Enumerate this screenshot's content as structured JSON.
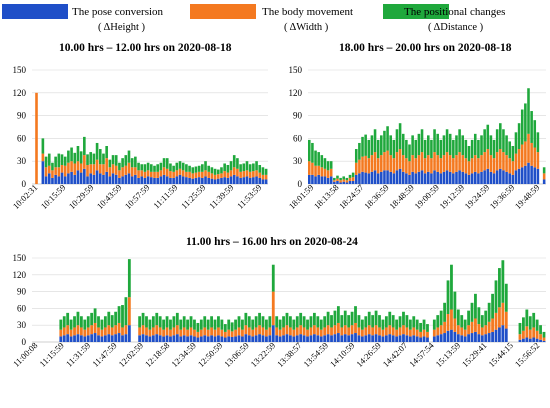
{
  "chart_data": [
    {
      "type": "bar",
      "stacked": true,
      "title": "10.00 hrs – 12.00 hrs on 2020-08-18",
      "ylim": [
        0,
        150
      ],
      "yticks": [
        0,
        30,
        60,
        90,
        120,
        150
      ],
      "grid": true,
      "x_tick_labels": [
        "10:02:31",
        "10:15:59",
        "10:29:59",
        "10:43:59",
        "10:57:59",
        "11:11:59",
        "11:25:59",
        "11:39:59",
        "11:53:59"
      ],
      "series": [
        {
          "key": "pose",
          "values": [
            0,
            0,
            0,
            30,
            10,
            14,
            8,
            12,
            10,
            15,
            10,
            14,
            16,
            12,
            18,
            15,
            20,
            10,
            14,
            12,
            18,
            14,
            12,
            16,
            10,
            14,
            12,
            8,
            10,
            12,
            14,
            10,
            12,
            8,
            10,
            8,
            10,
            9,
            8,
            8,
            10,
            12,
            10,
            8,
            8,
            10,
            12,
            10,
            9,
            8,
            7,
            8,
            9,
            8,
            10,
            8,
            7,
            6,
            7,
            8,
            9,
            8,
            10,
            12,
            10,
            8,
            9,
            10,
            8,
            9,
            10,
            8,
            6,
            6
          ]
        },
        {
          "key": "body",
          "values": [
            0,
            120,
            0,
            10,
            12,
            10,
            10,
            10,
            12,
            10,
            14,
            14,
            14,
            15,
            12,
            12,
            18,
            15,
            12,
            14,
            14,
            12,
            14,
            18,
            12,
            12,
            12,
            10,
            12,
            12,
            14,
            12,
            10,
            10,
            8,
            8,
            8,
            7,
            8,
            8,
            8,
            10,
            10,
            9,
            8,
            8,
            8,
            8,
            7,
            8,
            7,
            7,
            7,
            8,
            8,
            8,
            7,
            6,
            6,
            6,
            8,
            7,
            8,
            10,
            10,
            8,
            8,
            8,
            8,
            8,
            8,
            7,
            6,
            6
          ]
        },
        {
          "key": "positional",
          "values": [
            0,
            0,
            0,
            20,
            14,
            16,
            10,
            14,
            18,
            14,
            12,
            16,
            18,
            14,
            20,
            16,
            24,
            14,
            16,
            14,
            22,
            20,
            14,
            16,
            10,
            12,
            14,
            10,
            12,
            14,
            16,
            12,
            14,
            10,
            8,
            10,
            10,
            10,
            8,
            10,
            10,
            12,
            14,
            10,
            8,
            10,
            10,
            10,
            10,
            8,
            8,
            8,
            8,
            10,
            12,
            8,
            8,
            8,
            6,
            8,
            10,
            10,
            12,
            16,
            14,
            10,
            10,
            12,
            10,
            10,
            12,
            10,
            10,
            8
          ]
        }
      ]
    },
    {
      "type": "bar",
      "stacked": true,
      "title": "18.00 hrs – 20.00 hrs on 2020-08-18",
      "ylim": [
        0,
        150
      ],
      "yticks": [
        0,
        30,
        60,
        90,
        120,
        150
      ],
      "grid": true,
      "x_tick_labels": [
        "18:01:59",
        "18:13:58",
        "18:24:57",
        "18:36:59",
        "18:48:59",
        "19:00:59",
        "19:12:59",
        "19:24:59",
        "19:36:59",
        "19:48:59"
      ],
      "series": [
        {
          "key": "pose",
          "values": [
            12,
            12,
            10,
            12,
            10,
            10,
            8,
            10,
            3,
            4,
            2,
            3,
            2,
            4,
            4,
            12,
            14,
            16,
            15,
            14,
            16,
            18,
            14,
            16,
            18,
            18,
            16,
            14,
            18,
            20,
            16,
            14,
            12,
            16,
            14,
            16,
            18,
            14,
            16,
            14,
            18,
            16,
            14,
            16,
            18,
            16,
            14,
            16,
            18,
            16,
            14,
            12,
            14,
            16,
            14,
            16,
            18,
            20,
            16,
            14,
            18,
            20,
            18,
            16,
            14,
            12,
            18,
            20,
            22,
            24,
            28,
            24,
            22,
            20,
            0,
            6
          ]
        },
        {
          "key": "body",
          "values": [
            18,
            16,
            14,
            12,
            12,
            10,
            10,
            10,
            2,
            3,
            3,
            3,
            3,
            4,
            5,
            16,
            18,
            20,
            22,
            20,
            22,
            24,
            20,
            22,
            24,
            26,
            22,
            20,
            24,
            26,
            22,
            20,
            18,
            22,
            20,
            22,
            24,
            20,
            22,
            20,
            24,
            22,
            20,
            22,
            24,
            22,
            20,
            22,
            24,
            22,
            20,
            18,
            20,
            22,
            20,
            22,
            24,
            26,
            22,
            20,
            24,
            26,
            24,
            22,
            20,
            18,
            22,
            26,
            30,
            32,
            38,
            30,
            26,
            22,
            0,
            8
          ]
        },
        {
          "key": "positional",
          "values": [
            28,
            26,
            20,
            18,
            16,
            14,
            12,
            10,
            3,
            4,
            3,
            4,
            3,
            4,
            6,
            18,
            22,
            26,
            28,
            24,
            26,
            30,
            24,
            26,
            28,
            32,
            26,
            24,
            30,
            34,
            28,
            24,
            22,
            26,
            24,
            28,
            30,
            24,
            26,
            24,
            30,
            28,
            24,
            26,
            30,
            28,
            24,
            26,
            30,
            26,
            24,
            20,
            24,
            28,
            24,
            26,
            30,
            32,
            26,
            24,
            30,
            34,
            30,
            26,
            22,
            20,
            28,
            34,
            46,
            50,
            60,
            42,
            36,
            26,
            0,
            8
          ]
        }
      ]
    },
    {
      "type": "bar",
      "stacked": true,
      "title": "11.00 hrs – 16.00 hrs on 2020-08-24",
      "ylim": [
        0,
        150
      ],
      "yticks": [
        0,
        30,
        60,
        90,
        120,
        150
      ],
      "grid": true,
      "x_tick_labels": [
        "11:00:08",
        "11:15:59",
        "11:31:59",
        "11:47:59",
        "12:02:59",
        "12:18:58",
        "12:34:59",
        "12:50:59",
        "13:06:59",
        "13:22:59",
        "13:38:57",
        "13:54:59",
        "14:10:59",
        "14:26:59",
        "14:42:07",
        "14:57:54",
        "15:13:59",
        "15:29:41",
        "15:44:15",
        "15:56:52"
      ],
      "series": [
        {
          "key": "pose",
          "values": [
            0,
            0,
            0,
            0,
            0,
            0,
            0,
            0,
            10,
            12,
            14,
            10,
            12,
            14,
            12,
            10,
            12,
            14,
            16,
            12,
            10,
            12,
            14,
            12,
            14,
            16,
            12,
            14,
            30,
            0,
            0,
            12,
            14,
            12,
            10,
            12,
            14,
            12,
            10,
            12,
            10,
            12,
            14,
            10,
            12,
            10,
            12,
            10,
            8,
            10,
            12,
            10,
            12,
            10,
            12,
            10,
            8,
            10,
            9,
            10,
            12,
            10,
            14,
            12,
            10,
            12,
            14,
            12,
            10,
            12,
            30,
            12,
            10,
            12,
            14,
            12,
            10,
            12,
            14,
            12,
            10,
            12,
            14,
            12,
            10,
            12,
            14,
            12,
            14,
            16,
            12,
            14,
            12,
            14,
            16,
            12,
            10,
            12,
            14,
            12,
            14,
            12,
            10,
            12,
            14,
            12,
            10,
            12,
            14,
            12,
            10,
            12,
            10,
            8,
            10,
            8,
            0,
            10,
            12,
            14,
            16,
            20,
            22,
            18,
            14,
            12,
            10,
            14,
            16,
            18,
            14,
            12,
            14,
            16,
            18,
            22,
            26,
            30,
            24,
            0,
            0,
            0,
            4,
            6,
            8,
            6,
            8,
            6,
            4,
            2
          ]
        },
        {
          "key": "body",
          "values": [
            0,
            0,
            0,
            0,
            0,
            0,
            0,
            0,
            12,
            14,
            16,
            12,
            14,
            16,
            14,
            12,
            14,
            16,
            18,
            14,
            12,
            14,
            16,
            14,
            16,
            18,
            14,
            16,
            50,
            0,
            0,
            14,
            16,
            14,
            12,
            14,
            16,
            14,
            12,
            14,
            12,
            14,
            16,
            12,
            14,
            12,
            14,
            12,
            10,
            12,
            14,
            12,
            14,
            12,
            14,
            12,
            10,
            12,
            10,
            12,
            14,
            12,
            16,
            14,
            12,
            14,
            16,
            14,
            12,
            14,
            60,
            14,
            12,
            14,
            16,
            14,
            12,
            14,
            16,
            14,
            12,
            14,
            16,
            14,
            12,
            14,
            16,
            14,
            16,
            18,
            14,
            16,
            14,
            16,
            18,
            14,
            12,
            14,
            16,
            14,
            16,
            14,
            12,
            14,
            16,
            14,
            12,
            14,
            16,
            14,
            12,
            14,
            12,
            10,
            12,
            10,
            0,
            12,
            14,
            16,
            20,
            30,
            36,
            24,
            16,
            14,
            12,
            16,
            20,
            24,
            18,
            14,
            16,
            20,
            24,
            30,
            36,
            40,
            30,
            0,
            0,
            0,
            10,
            14,
            20,
            16,
            18,
            14,
            10,
            6
          ]
        },
        {
          "key": "positional",
          "values": [
            0,
            0,
            0,
            0,
            0,
            0,
            0,
            0,
            18,
            20,
            22,
            18,
            20,
            24,
            20,
            18,
            20,
            22,
            26,
            20,
            18,
            20,
            24,
            22,
            24,
            30,
            40,
            50,
            68,
            0,
            0,
            20,
            22,
            20,
            18,
            20,
            22,
            20,
            18,
            20,
            18,
            20,
            22,
            18,
            20,
            18,
            20,
            18,
            16,
            18,
            20,
            18,
            20,
            18,
            20,
            18,
            14,
            18,
            16,
            18,
            20,
            18,
            22,
            20,
            18,
            20,
            22,
            20,
            18,
            20,
            48,
            20,
            18,
            20,
            22,
            20,
            18,
            20,
            22,
            20,
            18,
            20,
            22,
            20,
            18,
            20,
            24,
            22,
            26,
            30,
            22,
            26,
            22,
            24,
            30,
            22,
            18,
            20,
            24,
            22,
            26,
            22,
            18,
            20,
            24,
            22,
            18,
            20,
            24,
            22,
            18,
            20,
            18,
            16,
            18,
            14,
            0,
            18,
            22,
            26,
            34,
            60,
            80,
            48,
            28,
            22,
            18,
            26,
            34,
            44,
            30,
            22,
            26,
            34,
            44,
            58,
            70,
            76,
            50,
            0,
            0,
            0,
            20,
            24,
            30,
            24,
            26,
            20,
            16,
            10
          ]
        }
      ]
    }
  ],
  "legend": [
    {
      "key": "pose",
      "label": "The pose conversion",
      "sublabel": "( ΔHeight )",
      "color": "#1f4fc8"
    },
    {
      "key": "body",
      "label": "The body movement",
      "sublabel": "( ΔWidth )",
      "color": "#f47920"
    },
    {
      "key": "positional",
      "label": "The positional changes",
      "sublabel": "( ΔDistance )",
      "color": "#1fa83c"
    }
  ]
}
